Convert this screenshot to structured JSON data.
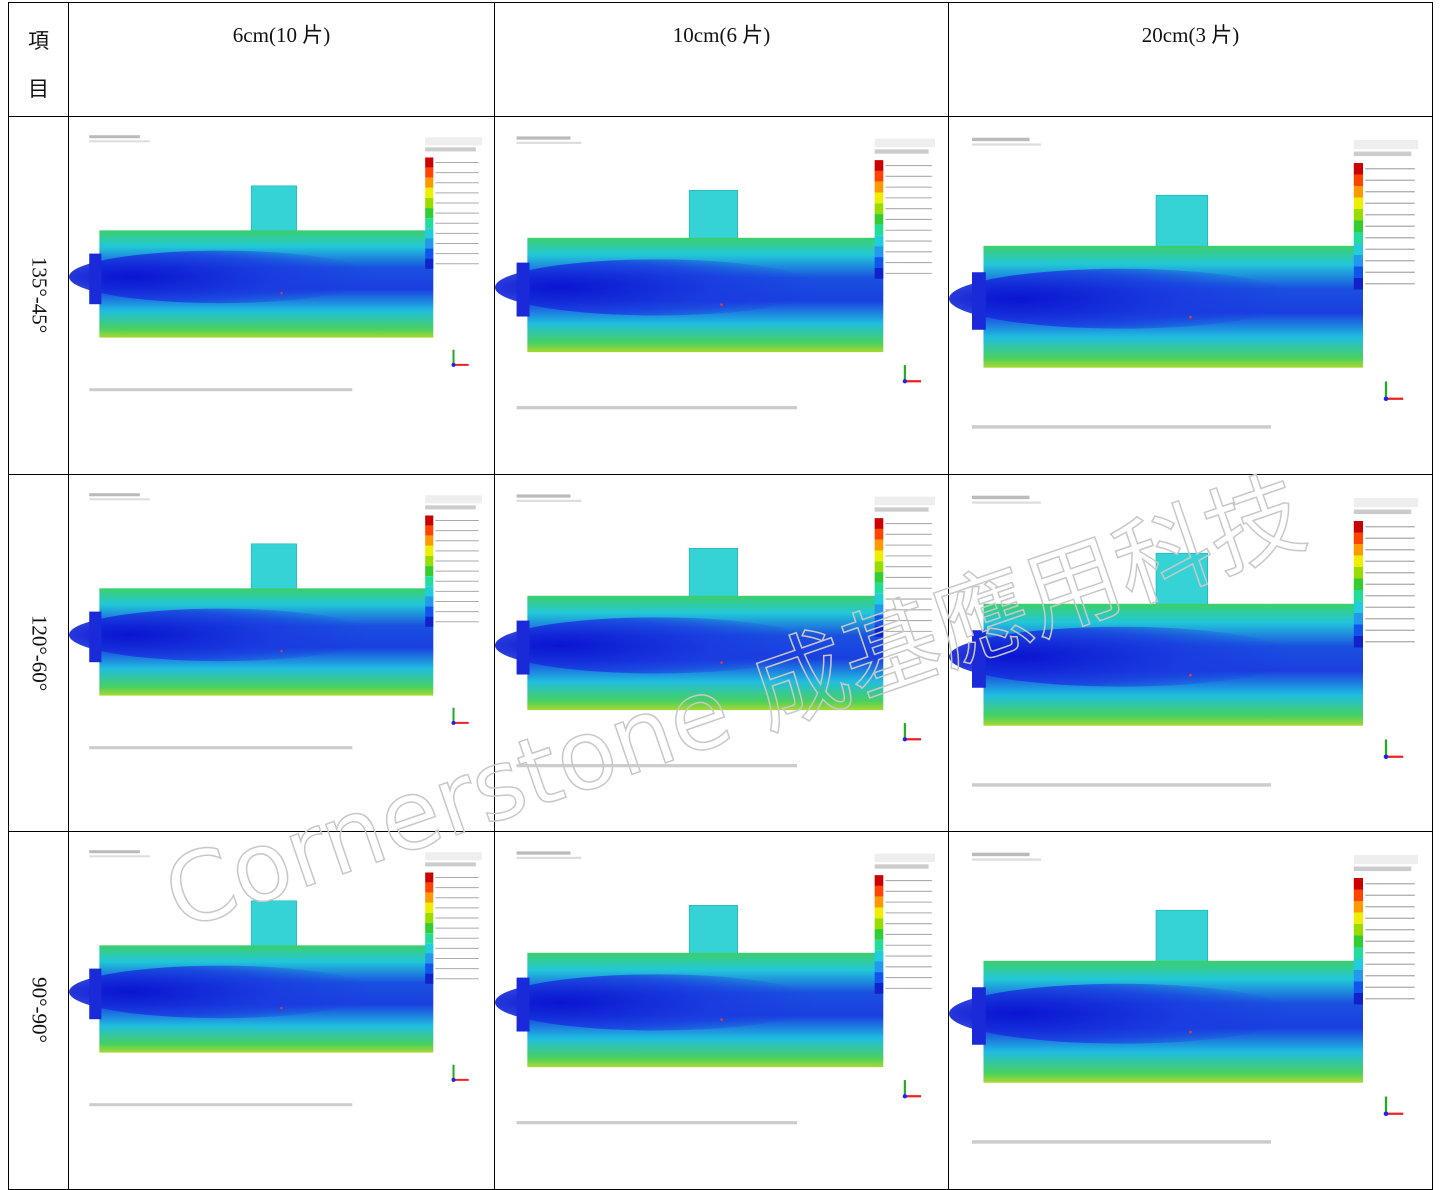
{
  "table": {
    "header": [
      "項目",
      "6cm(10 片)",
      "10cm(6 片)",
      "20cm(3 片)"
    ],
    "rows": [
      {
        "label": "135°-45°"
      },
      {
        "label": "120°-60°"
      },
      {
        "label": "90°-90°"
      }
    ]
  },
  "watermark": "Cornerstone 成基應用科技"
}
